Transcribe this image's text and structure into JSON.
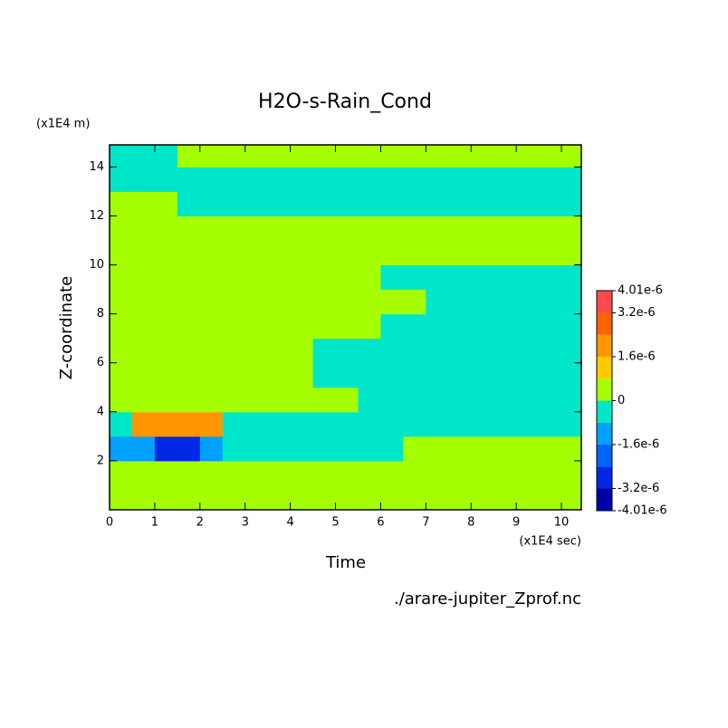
{
  "chart_data": {
    "type": "contour",
    "title": "H2O-s-Rain_Cond",
    "x_label": "Time",
    "x_unit": "(x1E4 sec)",
    "y_label": "Z-coordinate",
    "y_unit": "(x1E4 m)",
    "source": "./arare-jupiter_Zprof.nc",
    "xlim": [
      0,
      10.44
    ],
    "ylim": [
      0,
      14.9
    ],
    "xticks": [
      0,
      1,
      2,
      3,
      4,
      5,
      6,
      7,
      8,
      9,
      10
    ],
    "yticks": [
      2,
      4,
      6,
      8,
      10,
      12,
      14
    ],
    "xbins": [
      0,
      0.5,
      1,
      1.5,
      2,
      2.5,
      3,
      3.5,
      4,
      4.5,
      5,
      5.5,
      6,
      6.5,
      7,
      7.5,
      8,
      8.5,
      9,
      9.5,
      10,
      10.44
    ],
    "ybins": [
      0,
      1,
      2,
      3,
      4,
      5,
      6,
      7,
      8,
      9,
      10,
      11,
      12,
      13,
      14,
      14.9
    ],
    "levels": [
      -4.01e-06,
      -3.2e-06,
      -2.4e-06,
      -1.6e-06,
      -8e-07,
      0,
      8e-07,
      1.6e-06,
      2.4e-06,
      3.2e-06,
      4.01e-06
    ],
    "colors": [
      "#0000a8",
      "#0028e6",
      "#0064ff",
      "#00a0ff",
      "#00e6c8",
      "#a6ff00",
      "#ffc800",
      "#ff9600",
      "#ff6400",
      "#ff4b4b"
    ],
    "colorbar_ticks": [
      {
        "value": 4.01e-06,
        "label": "4.01e-6"
      },
      {
        "value": 3.2e-06,
        "label": "3.2e-6"
      },
      {
        "value": 1.6e-06,
        "label": "1.6e-6"
      },
      0,
      {
        "value": -1.6e-06,
        "label": "-1.6e-6"
      },
      {
        "value": -3.2e-06,
        "label": "-3.2e-6"
      },
      {
        "value": -4.01e-06,
        "label": "-4.01e-6"
      }
    ],
    "z": [
      [
        4e-07,
        4e-07,
        4e-07,
        4e-07,
        4e-07,
        4e-07,
        4e-07,
        4e-07,
        4e-07,
        4e-07,
        4e-07,
        4e-07,
        4e-07,
        4e-07,
        4e-07,
        4e-07,
        4e-07,
        4e-07,
        4e-07,
        4e-07,
        4e-07
      ],
      [
        4e-07,
        4e-07,
        4e-07,
        4e-07,
        4e-07,
        4e-07,
        4e-07,
        4e-07,
        4e-07,
        4e-07,
        4e-07,
        4e-07,
        4e-07,
        4e-07,
        4e-07,
        4e-07,
        4e-07,
        4e-07,
        4e-07,
        4e-07,
        4e-07
      ],
      [
        -1.2e-06,
        -1.2e-06,
        -2.8e-06,
        -2.8e-06,
        -1.2e-06,
        -4e-07,
        -4e-07,
        -4e-07,
        -4e-07,
        -4e-07,
        -4e-07,
        -4e-07,
        -4e-07,
        4e-07,
        4e-07,
        4e-07,
        4e-07,
        4e-07,
        4e-07,
        4e-07,
        4e-07
      ],
      [
        -4e-07,
        2e-06,
        2e-06,
        2e-06,
        2e-06,
        -4e-07,
        -4e-07,
        -4e-07,
        -4e-07,
        -4e-07,
        -4e-07,
        -4e-07,
        -4e-07,
        -4e-07,
        -4e-07,
        -4e-07,
        -4e-07,
        -4e-07,
        -4e-07,
        -4e-07,
        -4e-07
      ],
      [
        4e-07,
        4e-07,
        4e-07,
        4e-07,
        4e-07,
        4e-07,
        4e-07,
        4e-07,
        4e-07,
        4e-07,
        4e-07,
        -4e-07,
        -4e-07,
        -4e-07,
        -4e-07,
        -4e-07,
        -4e-07,
        -4e-07,
        -4e-07,
        -4e-07,
        -4e-07
      ],
      [
        4e-07,
        4e-07,
        4e-07,
        4e-07,
        4e-07,
        4e-07,
        4e-07,
        4e-07,
        4e-07,
        -4e-07,
        -4e-07,
        -4e-07,
        -4e-07,
        -4e-07,
        -4e-07,
        -4e-07,
        -4e-07,
        -4e-07,
        -4e-07,
        -4e-07,
        -4e-07
      ],
      [
        4e-07,
        4e-07,
        4e-07,
        4e-07,
        4e-07,
        4e-07,
        4e-07,
        4e-07,
        4e-07,
        -4e-07,
        -4e-07,
        -4e-07,
        -4e-07,
        -4e-07,
        -4e-07,
        -4e-07,
        -4e-07,
        -4e-07,
        -4e-07,
        -4e-07,
        -4e-07
      ],
      [
        4e-07,
        4e-07,
        4e-07,
        4e-07,
        4e-07,
        4e-07,
        4e-07,
        4e-07,
        4e-07,
        4e-07,
        4e-07,
        4e-07,
        -4e-07,
        -4e-07,
        -4e-07,
        -4e-07,
        -4e-07,
        -4e-07,
        -4e-07,
        -4e-07,
        -4e-07
      ],
      [
        4e-07,
        4e-07,
        4e-07,
        4e-07,
        4e-07,
        4e-07,
        4e-07,
        4e-07,
        4e-07,
        4e-07,
        4e-07,
        4e-07,
        4e-07,
        4e-07,
        -4e-07,
        -4e-07,
        -4e-07,
        -4e-07,
        -4e-07,
        -4e-07,
        -4e-07
      ],
      [
        4e-07,
        4e-07,
        4e-07,
        4e-07,
        4e-07,
        4e-07,
        4e-07,
        4e-07,
        4e-07,
        4e-07,
        4e-07,
        4e-07,
        -4e-07,
        -4e-07,
        -4e-07,
        -4e-07,
        -4e-07,
        -4e-07,
        -4e-07,
        -4e-07,
        -4e-07
      ],
      [
        4e-07,
        4e-07,
        4e-07,
        4e-07,
        4e-07,
        4e-07,
        4e-07,
        4e-07,
        4e-07,
        4e-07,
        4e-07,
        4e-07,
        4e-07,
        4e-07,
        4e-07,
        4e-07,
        4e-07,
        4e-07,
        4e-07,
        4e-07,
        4e-07
      ],
      [
        4e-07,
        4e-07,
        4e-07,
        4e-07,
        4e-07,
        4e-07,
        4e-07,
        4e-07,
        4e-07,
        4e-07,
        4e-07,
        4e-07,
        4e-07,
        4e-07,
        4e-07,
        4e-07,
        4e-07,
        4e-07,
        4e-07,
        4e-07,
        4e-07
      ],
      [
        4e-07,
        4e-07,
        4e-07,
        -4e-07,
        -4e-07,
        -4e-07,
        -4e-07,
        -4e-07,
        -4e-07,
        -4e-07,
        -4e-07,
        -4e-07,
        -4e-07,
        -4e-07,
        -4e-07,
        -4e-07,
        -4e-07,
        -4e-07,
        -4e-07,
        -4e-07,
        -4e-07
      ],
      [
        -4e-07,
        -4e-07,
        -4e-07,
        -4e-07,
        -4e-07,
        -4e-07,
        -4e-07,
        -4e-07,
        -4e-07,
        -4e-07,
        -4e-07,
        -4e-07,
        -4e-07,
        -4e-07,
        -4e-07,
        -4e-07,
        -4e-07,
        -4e-07,
        -4e-07,
        -4e-07,
        -4e-07
      ],
      [
        -4e-07,
        -4e-07,
        -4e-07,
        4e-07,
        4e-07,
        4e-07,
        4e-07,
        4e-07,
        4e-07,
        4e-07,
        4e-07,
        4e-07,
        4e-07,
        4e-07,
        4e-07,
        4e-07,
        4e-07,
        4e-07,
        4e-07,
        4e-07,
        4e-07
      ]
    ]
  }
}
